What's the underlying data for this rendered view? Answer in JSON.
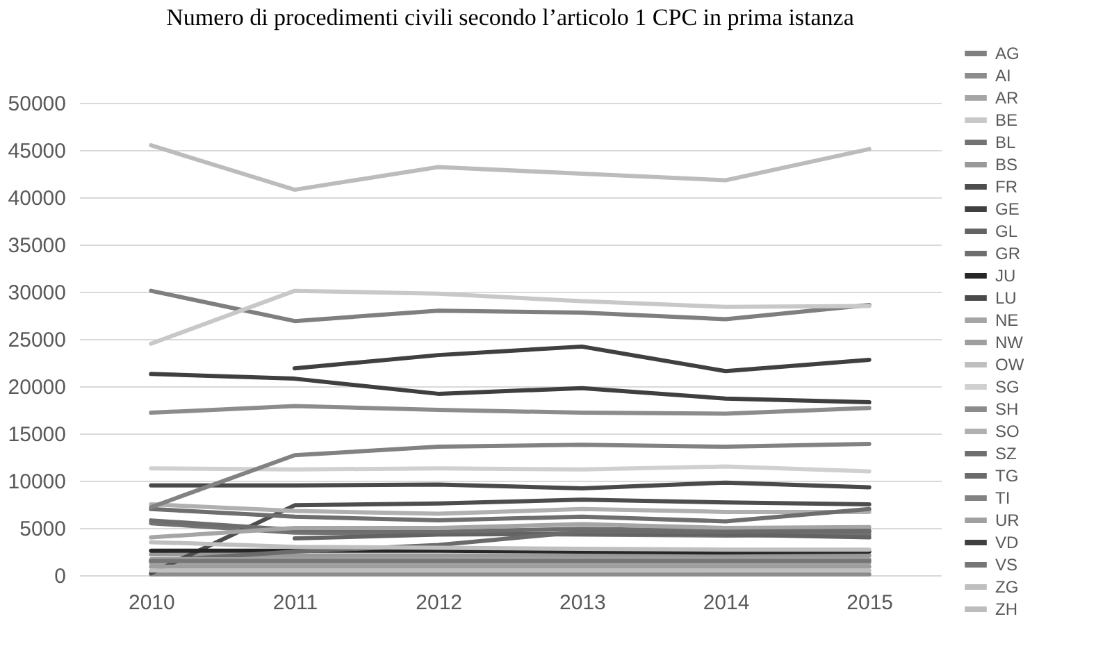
{
  "chart_data": {
    "type": "line",
    "title": "Numero di procedimenti civili secondo l’articolo 1 CPC in prima istanza",
    "categories": [
      "2010",
      "2011",
      "2012",
      "2013",
      "2014",
      "2015"
    ],
    "ylim": [
      0,
      50000
    ],
    "yticks": [
      0,
      5000,
      10000,
      15000,
      20000,
      25000,
      30000,
      35000,
      40000,
      45000,
      50000
    ],
    "grid": "y",
    "legend": "right",
    "series": [
      {
        "name": "AG",
        "color": "#7f7f7f",
        "values": [
          30100,
          26900,
          28000,
          27800,
          27100,
          28600
        ]
      },
      {
        "name": "AI",
        "color": "#8c8c8c",
        "values": [
          100,
          100,
          100,
          100,
          100,
          100
        ]
      },
      {
        "name": "AR",
        "color": "#a5a5a5",
        "values": [
          1300,
          1300,
          1300,
          1300,
          1300,
          1300
        ]
      },
      {
        "name": "BE",
        "color": "#c8c8c8",
        "values": [
          24500,
          30100,
          29800,
          29000,
          28400,
          28500
        ]
      },
      {
        "name": "BL",
        "color": "#737373",
        "values": [
          5500,
          4500,
          4400,
          4300,
          4200,
          4300
        ]
      },
      {
        "name": "BS",
        "color": "#999999",
        "values": [
          2200,
          2100,
          2100,
          2100,
          2100,
          2100
        ]
      },
      {
        "name": "FR",
        "color": "#4d4d4d",
        "values": [
          200,
          7400,
          7600,
          8000,
          7700,
          7500
        ]
      },
      {
        "name": "GE",
        "color": "#404040",
        "values": [
          null,
          21900,
          23300,
          24200,
          21600,
          22800
        ]
      },
      {
        "name": "GL",
        "color": "#636363",
        "values": [
          null,
          3900,
          4300,
          4400,
          4300,
          4000
        ]
      },
      {
        "name": "GR",
        "color": "#6e6e6e",
        "values": [
          5800,
          4800,
          4600,
          4900,
          4700,
          4600
        ]
      },
      {
        "name": "JU",
        "color": "#262626",
        "values": [
          2600,
          2600,
          2600,
          2500,
          2400,
          2500
        ]
      },
      {
        "name": "LU",
        "color": "#4a4a4a",
        "values": [
          9500,
          9500,
          9600,
          9200,
          9800,
          9300
        ]
      },
      {
        "name": "NE",
        "color": "#a5a5a5",
        "values": [
          4000,
          5000,
          5000,
          5400,
          5000,
          5100
        ]
      },
      {
        "name": "NW",
        "color": "#9e9e9e",
        "values": [
          900,
          900,
          900,
          900,
          900,
          900
        ]
      },
      {
        "name": "OW",
        "color": "#bfbfbf",
        "values": [
          500,
          500,
          500,
          500,
          500,
          500
        ]
      },
      {
        "name": "SG",
        "color": "#d0d0d0",
        "values": [
          11300,
          11200,
          11300,
          11200,
          11500,
          11000
        ]
      },
      {
        "name": "SH",
        "color": "#8c8c8c",
        "values": [
          17200,
          17900,
          17500,
          17200,
          17100,
          17700
        ]
      },
      {
        "name": "SO",
        "color": "#b0b0b0",
        "values": [
          7500,
          6800,
          6500,
          7000,
          6700,
          6700
        ]
      },
      {
        "name": "SZ",
        "color": "#6e6e6e",
        "values": [
          7000,
          6200,
          5800,
          6200,
          5700,
          7000
        ]
      },
      {
        "name": "TG",
        "color": "#6b6b6b",
        "values": [
          1500,
          2500,
          3200,
          4600,
          4600,
          4700
        ]
      },
      {
        "name": "TI",
        "color": "#828282",
        "values": [
          7200,
          12700,
          13600,
          13800,
          13600,
          13900
        ]
      },
      {
        "name": "UR",
        "color": "#a0a0a0",
        "values": [
          1700,
          1700,
          1700,
          1700,
          1700,
          1700
        ]
      },
      {
        "name": "VD",
        "color": "#3f3f3f",
        "values": [
          21300,
          20800,
          19200,
          19800,
          18700,
          18300
        ]
      },
      {
        "name": "VS",
        "color": "#767676",
        "values": [
          1500,
          1500,
          1500,
          1500,
          1500,
          1500
        ]
      },
      {
        "name": "ZG",
        "color": "#bfbfbf",
        "values": [
          3500,
          3000,
          2900,
          2800,
          2700,
          2700
        ]
      },
      {
        "name": "ZH",
        "color": "#bcbcbc",
        "values": [
          45500,
          40800,
          43200,
          42500,
          41800,
          45100
        ]
      }
    ]
  }
}
